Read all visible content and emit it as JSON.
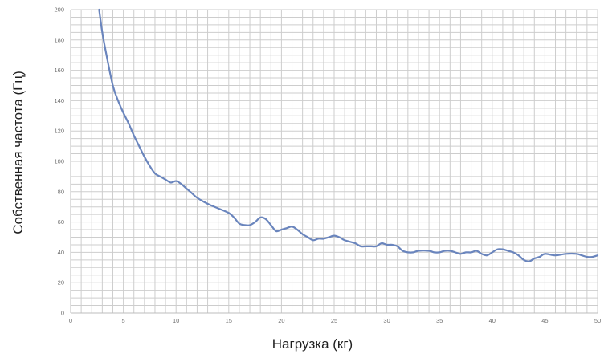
{
  "chart_data": {
    "type": "line",
    "title": "",
    "xlabel": "Нагрузка (кг)",
    "ylabel": "Собственная частота (Гц)",
    "xlim": [
      0,
      50
    ],
    "ylim": [
      0,
      200
    ],
    "x_ticks": [
      "0",
      "5",
      "10",
      "15",
      "20",
      "25",
      "30",
      "35",
      "40",
      "45",
      "50"
    ],
    "y_ticks": [
      "0",
      "20",
      "40",
      "60",
      "80",
      "100",
      "120",
      "140",
      "160",
      "180",
      "200"
    ],
    "grid": true,
    "legend": "none",
    "colors": {
      "line": "#6a85bd",
      "grid": "#cdcdcd",
      "axis": "#bdbdbd"
    },
    "series": [
      {
        "x": [
          2.7,
          3.0,
          3.4,
          4.0,
          4.5,
          5.0,
          5.5,
          6.0,
          6.5,
          7.0,
          7.5,
          8.0,
          8.5,
          9.0,
          9.5,
          10.0,
          10.5,
          11.0,
          11.5,
          12.0,
          13.0,
          14.0,
          15.0,
          15.5,
          16.0,
          16.5,
          17.0,
          17.5,
          18.0,
          18.5,
          19.0,
          19.5,
          20.0,
          20.5,
          21.0,
          21.5,
          22.0,
          22.5,
          23.0,
          23.5,
          24.0,
          24.5,
          25.0,
          25.5,
          26.0,
          27.0,
          27.5,
          28.0,
          28.5,
          29.0,
          29.5,
          30.0,
          30.5,
          31.0,
          31.5,
          32.0,
          32.5,
          33.0,
          34.0,
          34.5,
          35.0,
          35.5,
          36.0,
          36.5,
          37.0,
          37.5,
          38.0,
          38.5,
          39.0,
          39.5,
          40.0,
          40.5,
          41.0,
          41.5,
          42.0,
          42.5,
          43.0,
          43.5,
          44.0,
          44.5,
          45.0,
          46.0,
          47.0,
          48.0,
          48.5,
          49.0,
          49.5,
          50.0
        ],
        "y": [
          200,
          185,
          170,
          150,
          140,
          132,
          125,
          117,
          110,
          103,
          97,
          92,
          90,
          88,
          86,
          87,
          85,
          82,
          79,
          76,
          72,
          69,
          66,
          63,
          59,
          58,
          58,
          60,
          63,
          62,
          58,
          54,
          55,
          56,
          57,
          55,
          52,
          50,
          48,
          49,
          49,
          50,
          51,
          50,
          48,
          46,
          44,
          44,
          44,
          44,
          46,
          45,
          45,
          44,
          41,
          40,
          40,
          41,
          41,
          40,
          40,
          41,
          41,
          40,
          39,
          40,
          40,
          41,
          39,
          38,
          40,
          42,
          42,
          41,
          40,
          38,
          35,
          34,
          36,
          37,
          39,
          38,
          39,
          39,
          38,
          37,
          37,
          38
        ]
      }
    ]
  }
}
